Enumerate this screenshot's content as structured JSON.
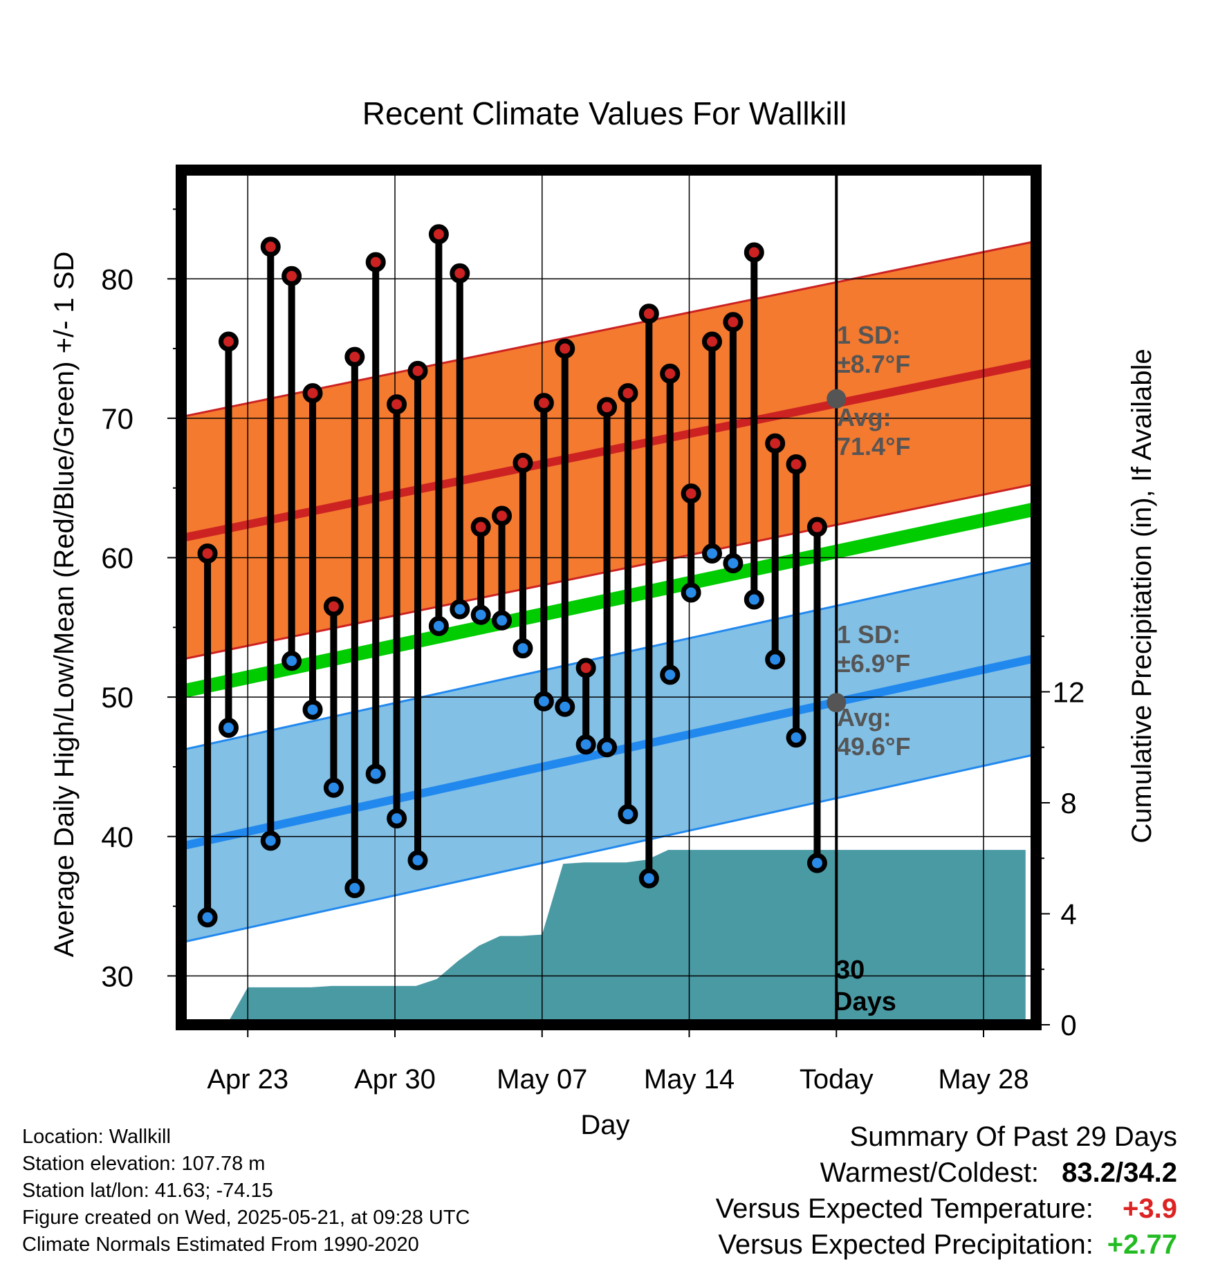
{
  "chart_data": {
    "type": "line",
    "title": "Recent Climate Values For Wallkill",
    "xlabel": "Day",
    "ylabel": "Average Daily High/Low/Mean (Red/Blue/Green) +/- 1 SD",
    "ylabel_right": "Cumulative Precipitation (in), If Available",
    "ylim": [
      26.5,
      87.8
    ],
    "ylim_right": [
      0,
      30.8
    ],
    "x_ticks": [
      {
        "date": "2025-04-23",
        "label": "Apr 23"
      },
      {
        "date": "2025-04-30",
        "label": "Apr 30"
      },
      {
        "date": "2025-05-07",
        "label": "May 07"
      },
      {
        "date": "2025-05-14",
        "label": "May 14"
      },
      {
        "date": "2025-05-21",
        "label": "Today"
      },
      {
        "date": "2025-05-28",
        "label": "May 28"
      }
    ],
    "y_ticks": [
      "30",
      "40",
      "50",
      "60",
      "70",
      "80"
    ],
    "y_ticks_right": [
      "0",
      "4",
      "8",
      "12"
    ],
    "x_range": [
      "2025-04-19T20:00",
      "2025-05-30T12:00"
    ],
    "today": "2025-05-21",
    "today_label": [
      "30",
      "Days"
    ],
    "daily": {
      "dates": [
        "2025-04-20",
        "2025-04-21",
        "2025-04-22",
        "2025-04-23",
        "2025-04-24",
        "2025-04-25",
        "2025-04-26",
        "2025-04-27",
        "2025-04-28",
        "2025-04-29",
        "2025-04-30",
        "2025-05-01",
        "2025-05-02",
        "2025-05-03",
        "2025-05-04",
        "2025-05-05",
        "2025-05-06",
        "2025-05-07",
        "2025-05-08",
        "2025-05-09",
        "2025-05-10",
        "2025-05-11",
        "2025-05-12",
        "2025-05-13",
        "2025-05-14",
        "2025-05-15",
        "2025-05-16",
        "2025-05-17",
        "2025-05-18",
        "2025-05-19",
        "2025-05-20"
      ],
      "high": [
        60.3,
        75.5,
        null,
        82.3,
        80.2,
        71.8,
        56.5,
        74.4,
        81.2,
        71.0,
        73.4,
        83.2,
        80.4,
        62.2,
        63.0,
        66.8,
        71.1,
        75.0,
        52.1,
        70.8,
        71.8,
        77.5,
        73.2,
        64.6,
        75.5,
        76.9,
        81.9,
        68.2,
        66.7,
        62.2,
        null
      ],
      "low": [
        34.2,
        47.8,
        null,
        39.7,
        52.6,
        49.1,
        43.5,
        36.3,
        44.5,
        41.3,
        38.3,
        55.1,
        56.3,
        55.9,
        55.5,
        53.5,
        49.7,
        49.3,
        46.6,
        46.4,
        41.6,
        37.0,
        51.6,
        57.5,
        60.3,
        59.6,
        57.0,
        52.7,
        47.1,
        38.1,
        null
      ]
    },
    "normals": {
      "dates": [
        "2025-04-19T20:00",
        "2025-05-30T12:00"
      ],
      "high_avg": [
        61.4,
        74.0
      ],
      "high_sd": 8.7,
      "low_avg": [
        39.3,
        52.8
      ],
      "low_sd": 6.9,
      "mean_avg": [
        50.4,
        63.5
      ]
    },
    "precip": {
      "dates": [
        "2025-04-22",
        "2025-04-23",
        "2025-04-24",
        "2025-04-25",
        "2025-04-26",
        "2025-04-27",
        "2025-04-28",
        "2025-04-29",
        "2025-04-30",
        "2025-05-01",
        "2025-05-02",
        "2025-05-03",
        "2025-05-04",
        "2025-05-05",
        "2025-05-06",
        "2025-05-07",
        "2025-05-08",
        "2025-05-09",
        "2025-05-10",
        "2025-05-11",
        "2025-05-12",
        "2025-05-13",
        "2025-05-14",
        "2025-05-15",
        "2025-05-16",
        "2025-05-17",
        "2025-05-18",
        "2025-05-19",
        "2025-05-20",
        "2025-05-21",
        "2025-05-30"
      ],
      "cumulative": [
        0,
        1.35,
        1.35,
        1.35,
        1.35,
        1.4,
        1.4,
        1.4,
        1.4,
        1.4,
        1.65,
        2.3,
        2.85,
        3.2,
        3.2,
        3.25,
        5.8,
        5.85,
        5.85,
        5.85,
        5.95,
        6.3,
        6.3,
        6.3,
        6.3,
        6.3,
        6.3,
        6.3,
        6.3,
        6.3,
        6.3
      ]
    },
    "annotations": {
      "high_sd": [
        "1 SD:",
        "±8.7°F"
      ],
      "high_avg": [
        "Avg:",
        "71.4°F"
      ],
      "low_sd": [
        "1 SD:",
        "±6.9°F"
      ],
      "low_avg": [
        "Avg:",
        "49.6°F"
      ],
      "high_avg_today": 71.4,
      "low_avg_today": 49.6
    },
    "grid": true,
    "colors": {
      "high_band": "#f47a30",
      "high_line": "#cc2222",
      "low_band": "#82c0e6",
      "low_line": "#2188ee",
      "mean_line": "#00cc00",
      "precip": "#4a9aa4",
      "high_marker": "#cc2222",
      "low_marker": "#2a8ae8",
      "annotation": "#555555",
      "positive_temp": "#dd2222",
      "positive_precip": "#22bb22"
    }
  },
  "footer": {
    "location": "Location: Wallkill",
    "elevation": "Station elevation: 107.78 m",
    "latlon": "Station lat/lon: 41.63; -74.15",
    "created": "Figure created on Wed, 2025-05-21, at 09:28 UTC",
    "normals": "Climate Normals Estimated From 1990-2020"
  },
  "summary": {
    "heading": "Summary Of Past 29 Days",
    "warmest_label": "Warmest/Coldest:",
    "warmest_value": "83.2/34.2",
    "temp_label": "Versus Expected Temperature:",
    "temp_value": "+3.9",
    "precip_label": "Versus Expected Precipitation:",
    "precip_value": "+2.77"
  }
}
